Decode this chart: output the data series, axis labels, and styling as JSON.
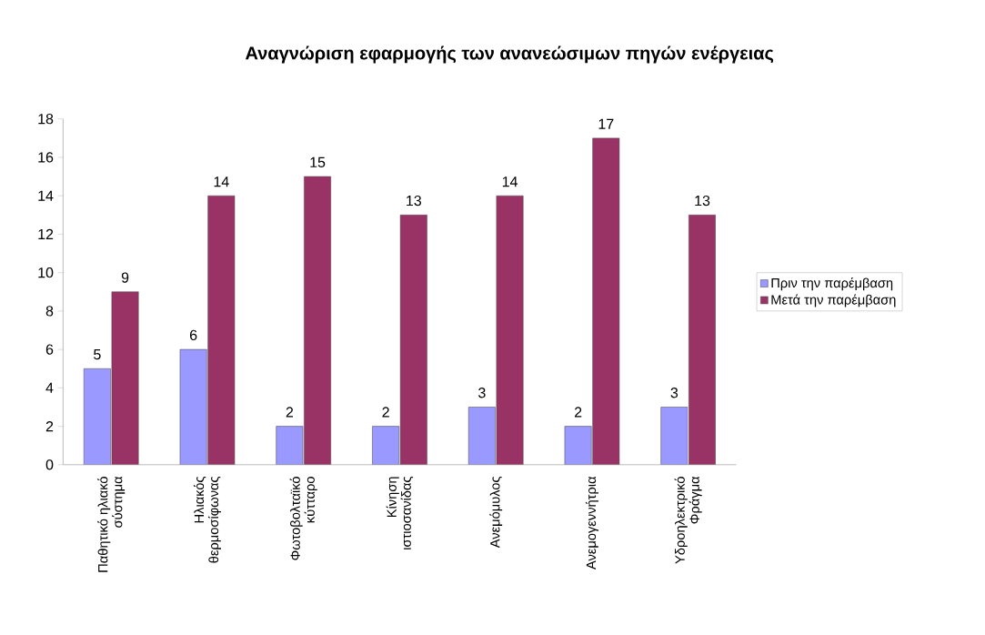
{
  "chart_data": {
    "type": "bar",
    "title": "Αναγνώριση εφαρμογής των ανανεώσιμων πηγών ενέργειας",
    "categories": [
      "Παθητικό ηλιακό σύστημα",
      "Ηλιακός θερμοσίφωνας",
      "Φωτοβολταϊκό κύτταρο",
      "Κίνηση ιστιοσανίδας",
      "Ανεμόμυλος",
      "Ανεμογεννήτρια",
      "Υδροηλεκτρικό Φράγμα"
    ],
    "series": [
      {
        "name": "Πριν την παρέμβαση",
        "color": "#9999ff",
        "values": [
          5,
          6,
          2,
          2,
          3,
          2,
          3
        ]
      },
      {
        "name": "Μετά την παρέμβαση",
        "color": "#993366",
        "values": [
          9,
          14,
          15,
          13,
          14,
          17,
          13
        ]
      }
    ],
    "ylim": [
      0,
      18
    ],
    "yticks": [
      0,
      2,
      4,
      6,
      8,
      10,
      12,
      14,
      16,
      18
    ],
    "data_labels": true,
    "grid": false,
    "legend": "right"
  }
}
